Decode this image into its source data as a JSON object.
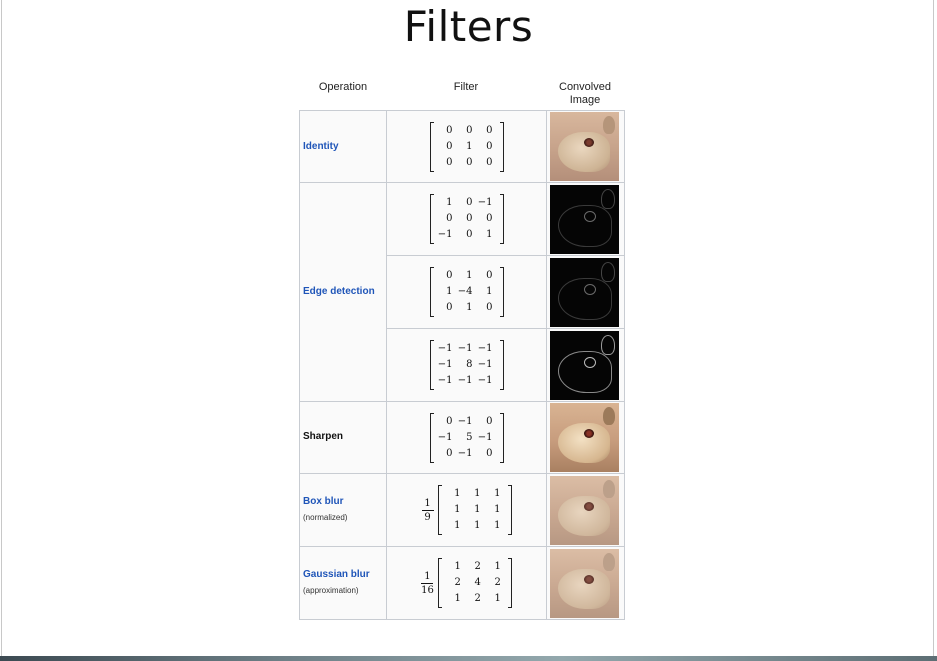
{
  "slide": {
    "title": "Filters"
  },
  "table": {
    "headers": {
      "operation": "Operation",
      "filter": "Filter",
      "image_line1": "Convolved",
      "image_line2": "Image"
    },
    "operations": {
      "identity": {
        "label": "Identity"
      },
      "edge": {
        "label": "Edge detection"
      },
      "sharpen": {
        "label": "Sharpen"
      },
      "box": {
        "label": "Box blur",
        "note": "(normalized)"
      },
      "gauss": {
        "label": "Gaussian blur",
        "note": "(approximation)"
      }
    },
    "filters": [
      {
        "coef_num": "",
        "coef_den": "",
        "cells": [
          "0",
          "0",
          "0",
          "0",
          "1",
          "0",
          "0",
          "0",
          "0"
        ]
      },
      {
        "coef_num": "",
        "coef_den": "",
        "cells": [
          "1",
          "0",
          "−1",
          "0",
          "0",
          "0",
          "−1",
          "0",
          "1"
        ]
      },
      {
        "coef_num": "",
        "coef_den": "",
        "cells": [
          "0",
          "1",
          "0",
          "1",
          "−4",
          "1",
          "0",
          "1",
          "0"
        ]
      },
      {
        "coef_num": "",
        "coef_den": "",
        "cells": [
          "−1",
          "−1",
          "−1",
          "−1",
          "8",
          "−1",
          "−1",
          "−1",
          "−1"
        ]
      },
      {
        "coef_num": "",
        "coef_den": "",
        "cells": [
          "0",
          "−1",
          "0",
          "−1",
          "5",
          "−1",
          "0",
          "−1",
          "0"
        ]
      },
      {
        "coef_num": "1",
        "coef_den": "9",
        "cells": [
          "1",
          "1",
          "1",
          "1",
          "1",
          "1",
          "1",
          "1",
          "1"
        ]
      },
      {
        "coef_num": "1",
        "coef_den": "16",
        "cells": [
          "1",
          "2",
          "1",
          "2",
          "4",
          "2",
          "1",
          "2",
          "1"
        ]
      }
    ]
  }
}
